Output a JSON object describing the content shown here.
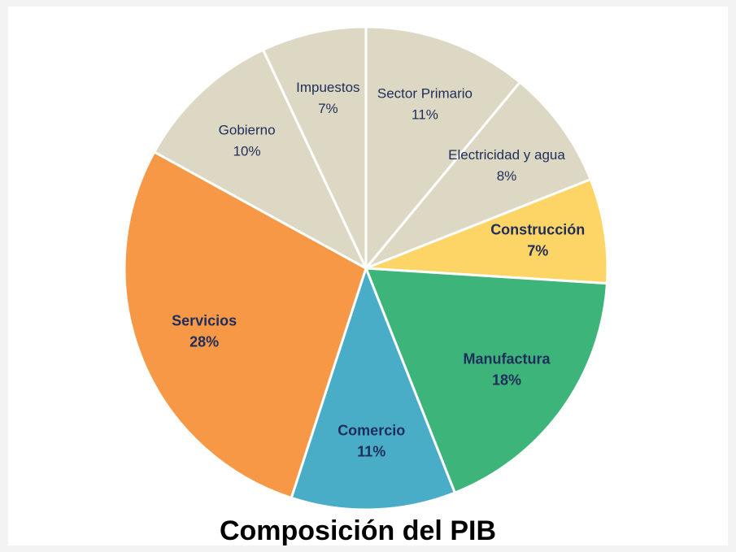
{
  "chart_data": {
    "type": "pie",
    "title": "Composición del PIB",
    "categories": [
      "Sector Primario",
      "Electricidad y agua",
      "Construcción",
      "Manufactura",
      "Comercio",
      "Servicios",
      "Gobierno",
      "Impuestos"
    ],
    "values": [
      11,
      8,
      7,
      18,
      11,
      28,
      10,
      7
    ],
    "value_labels": [
      "11%",
      "8%",
      "7%",
      "18%",
      "11%",
      "28%",
      "10%",
      "7%"
    ],
    "colors": [
      "#ddd8c3",
      "#ddd8c3",
      "#fdd567",
      "#3db57a",
      "#4aadc8",
      "#f79846",
      "#ddd8c3",
      "#ddd8c3"
    ]
  }
}
